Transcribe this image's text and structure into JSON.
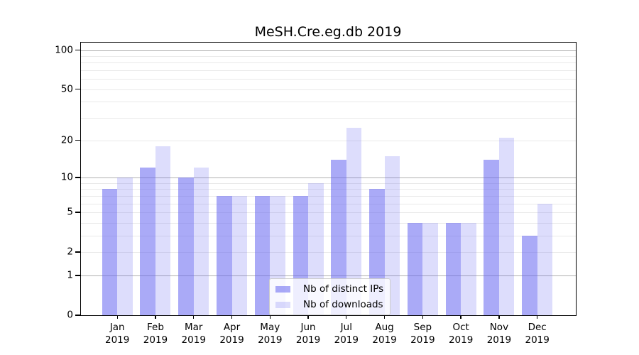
{
  "chart_data": {
    "type": "bar",
    "title": "MeSH.Cre.eg.db 2019",
    "categories": [
      "Jan\n2019",
      "Feb\n2019",
      "Mar\n2019",
      "Apr\n2019",
      "May\n2019",
      "Jun\n2019",
      "Jul\n2019",
      "Aug\n2019",
      "Sep\n2019",
      "Oct\n2019",
      "Nov\n2019",
      "Dec\n2019"
    ],
    "series": [
      {
        "name": "Nb of distinct IPs",
        "color": "rgba(100,100,240,0.55)",
        "values": [
          8,
          12,
          10,
          7,
          7,
          7,
          14,
          8,
          4,
          4,
          14,
          3
        ]
      },
      {
        "name": "Nb of downloads",
        "color": "rgba(100,100,240,0.22)",
        "values": [
          10,
          18,
          12,
          7,
          7,
          9,
          25,
          15,
          4,
          4,
          21,
          6
        ]
      }
    ],
    "xlabel": "",
    "ylabel": "",
    "yscale": "log1p",
    "ylim": [
      0,
      114
    ],
    "yticks": [
      0,
      1,
      2,
      5,
      10,
      20,
      50,
      100
    ],
    "grid": {
      "major": [
        1,
        10,
        100
      ],
      "minor": [
        2,
        3,
        4,
        5,
        6,
        7,
        8,
        9,
        20,
        30,
        40,
        50,
        60,
        70,
        80,
        90
      ]
    },
    "legend_position": "lower right inside",
    "colors": {
      "major_grid": "#b0b0b0",
      "minor_grid": "#e9e9e9",
      "axis": "#000000",
      "background": "#ffffff"
    }
  }
}
